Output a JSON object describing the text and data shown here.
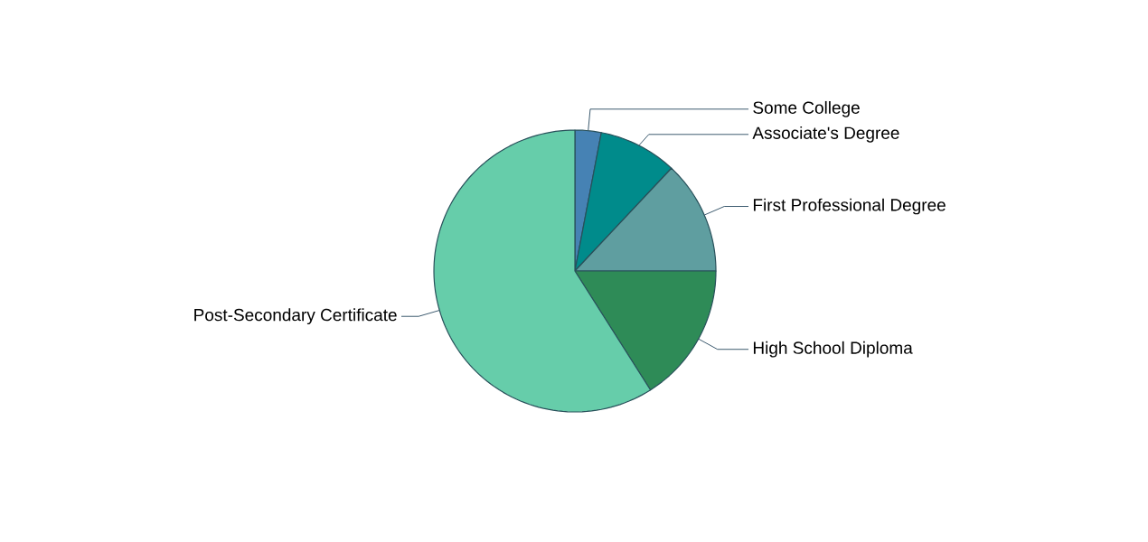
{
  "chart_data": {
    "type": "pie",
    "categories": [
      "Some College",
      "Associate's Degree",
      "First Professional Degree",
      "High School Diploma",
      "Post-Secondary Certificate"
    ],
    "values": [
      3,
      9,
      13,
      16,
      59
    ],
    "colors": [
      "#4682b4",
      "#008b8b",
      "#5f9ea0",
      "#2e8b57",
      "#66cdaa"
    ]
  }
}
